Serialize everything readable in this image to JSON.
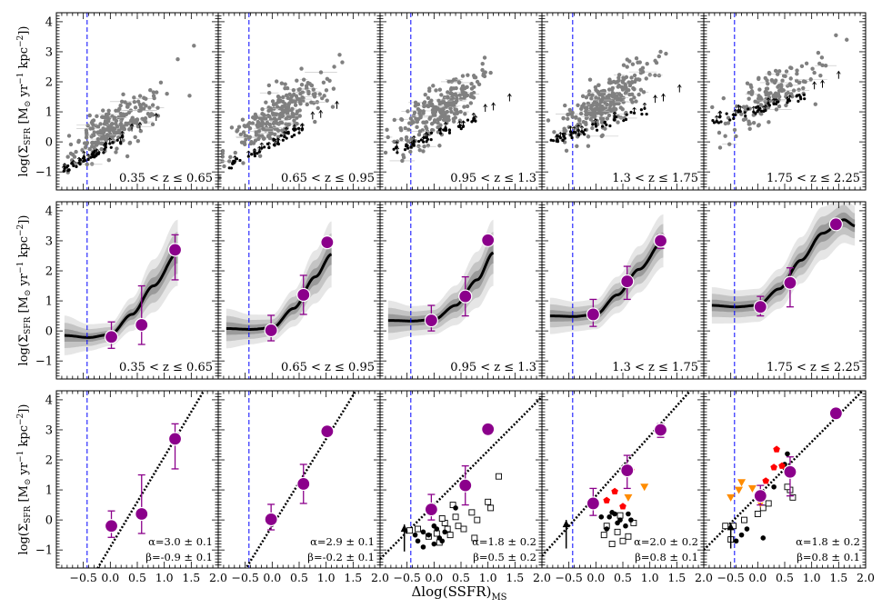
{
  "figure": {
    "x_label": "Δlog(SSFR)_MS",
    "x_label_main": "Δlog(SSFR)",
    "x_label_sub": "MS",
    "y_label": "log(Σ_SFR [M_⊙ yr^-1 kpc^-2])",
    "y_label_parts": {
      "pre": "log(Σ",
      "sub": "SFR",
      "mid": " [M",
      "sun": "⊙",
      "yr": " yr",
      "exp1": "−1",
      "kpc": " kpc",
      "exp2": "−2",
      "post": "])"
    },
    "colors": {
      "scatter": "#808080",
      "median": "#000000",
      "point": "#8b008b",
      "marker_edge": "#ffffff",
      "vline": "#0000ff",
      "band_outer": "#e6e6e6",
      "band_mid": "#c4c4c4",
      "band_inner": "#9a9a9a",
      "red_points": "#ff0000",
      "orange_points": "#ff8c00"
    }
  },
  "chart_data": {
    "type": "scatter",
    "layout": "3 rows x 5 columns, shared axes",
    "xlim": [
      -1.0,
      2.0
    ],
    "ylim": [
      -1.6,
      4.3
    ],
    "x_ticks": [
      -0.5,
      0.0,
      0.5,
      1.0,
      1.5,
      2.0
    ],
    "x_tick_labels": [
      "−0.5",
      "0.0",
      "0.5",
      "1.0",
      "1.5",
      "2.0"
    ],
    "y_ticks": [
      -1,
      0,
      1,
      2,
      3,
      4
    ],
    "y_tick_labels": [
      "−1",
      "0",
      "1",
      "2",
      "3",
      "4"
    ],
    "vline_x": -0.43,
    "bins": [
      {
        "label": "0.35 < z ≤ 0.65",
        "medians": [
          {
            "x": 0.02,
            "y": -0.2,
            "err_lo": 0.38,
            "err_hi": 0.5
          },
          {
            "x": 0.58,
            "y": 0.2,
            "err_lo": 0.65,
            "err_hi": 1.3
          },
          {
            "x": 1.2,
            "y": 2.7,
            "err_lo": 1.0,
            "err_hi": 0.5
          }
        ],
        "curve": {
          "x": [
            -0.85,
            -0.4,
            0.0,
            0.4,
            0.8,
            1.25
          ],
          "y": [
            -0.15,
            -0.22,
            -0.12,
            0.55,
            1.5,
            2.6
          ],
          "w": [
            0.6,
            0.4,
            0.35,
            0.5,
            0.8,
            1.0
          ]
        },
        "fit": {
          "alpha": "α=3.0 ± 0.1",
          "beta": "β=-0.9 ± 0.1",
          "slope": 3.0,
          "intercept": -0.9
        },
        "cloud": {
          "cx": 0.05,
          "cy": 0.5,
          "sx": 0.38,
          "sy": 0.55,
          "slope": 0.9,
          "n": 230,
          "seed": 11
        },
        "outliers": [
          [
            1.25,
            2.75
          ],
          [
            1.55,
            3.2
          ],
          [
            0.8,
            1.65
          ],
          [
            1.05,
            1.6
          ]
        ],
        "arrow_line": {
          "x0": -0.9,
          "x1": 0.25,
          "y0": -0.95,
          "y1": 0.1
        }
      },
      {
        "label": "0.65 < z ≤ 0.95",
        "medians": [
          {
            "x": -0.02,
            "y": 0.02,
            "err_lo": 0.35,
            "err_hi": 0.5
          },
          {
            "x": 0.58,
            "y": 1.2,
            "err_lo": 0.65,
            "err_hi": 0.65
          },
          {
            "x": 1.02,
            "y": 2.95,
            "err_lo": 0.0,
            "err_hi": 0.0
          }
        ],
        "curve": {
          "x": [
            -0.85,
            -0.4,
            0.0,
            0.4,
            0.8,
            1.1
          ],
          "y": [
            0.08,
            0.05,
            0.1,
            0.75,
            1.8,
            2.55
          ],
          "w": [
            0.6,
            0.45,
            0.4,
            0.55,
            0.8,
            1.0
          ]
        },
        "fit": {
          "alpha": "α=2.9 ± 0.1",
          "beta": "β=-0.2 ± 0.1",
          "slope": 2.9,
          "intercept": -0.2
        },
        "cloud": {
          "cx": 0.1,
          "cy": 0.85,
          "sx": 0.4,
          "sy": 0.55,
          "slope": 1.1,
          "n": 260,
          "seed": 23
        },
        "outliers": [
          [
            1.15,
            2.5
          ],
          [
            1.25,
            2.9
          ],
          [
            1.3,
            2.65
          ]
        ],
        "arrow_line": {
          "x0": -0.85,
          "x1": 0.6,
          "y0": -0.85,
          "y1": 0.5
        }
      },
      {
        "label": "0.95 < z ≤ 1.3",
        "medians": [
          {
            "x": -0.05,
            "y": 0.35,
            "err_lo": 0.35,
            "err_hi": 0.5
          },
          {
            "x": 0.58,
            "y": 1.15,
            "err_lo": 0.65,
            "err_hi": 0.65
          },
          {
            "x": 1.0,
            "y": 3.02,
            "err_lo": 0.0,
            "err_hi": 0.0
          }
        ],
        "curve": {
          "x": [
            -0.85,
            -0.4,
            0.0,
            0.4,
            0.8,
            1.1
          ],
          "y": [
            0.35,
            0.33,
            0.38,
            0.85,
            1.7,
            2.6
          ],
          "w": [
            0.6,
            0.45,
            0.45,
            0.6,
            0.85,
            1.0
          ]
        },
        "fit": {
          "alpha": "α=1.8 ± 0.2",
          "beta": "β=0.5 ± 0.2",
          "slope": 1.8,
          "intercept": 0.5
        },
        "cloud": {
          "cx": 0.1,
          "cy": 1.05,
          "sx": 0.4,
          "sy": 0.6,
          "slope": 1.2,
          "n": 240,
          "seed": 37
        },
        "outliers": [
          [
            0.9,
            2.6
          ],
          [
            1.05,
            2.3
          ],
          [
            0.75,
            2.15
          ]
        ],
        "arrow_line": {
          "x0": -0.85,
          "x1": 0.8,
          "y0": -0.35,
          "y1": 0.75
        },
        "black_dots": [
          [
            -0.2,
            -0.4
          ],
          [
            -0.3,
            -0.7
          ],
          [
            -0.1,
            -0.5
          ],
          [
            0.0,
            -0.8
          ],
          [
            0.1,
            -0.6
          ],
          [
            -0.2,
            -0.9
          ],
          [
            0.2,
            -0.4
          ],
          [
            0.15,
            -0.7
          ],
          [
            0.05,
            -0.3
          ],
          [
            0.4,
            0.4
          ],
          [
            -0.35,
            -0.5
          ],
          [
            0.0,
            -0.2
          ]
        ],
        "open_squares": [
          [
            -0.45,
            -0.35
          ],
          [
            -0.3,
            -0.3
          ],
          [
            -0.1,
            -0.55
          ],
          [
            0.05,
            -0.45
          ],
          [
            0.1,
            -0.75
          ],
          [
            0.2,
            -0.1
          ],
          [
            0.25,
            -0.3
          ],
          [
            0.3,
            -0.5
          ],
          [
            0.4,
            0.1
          ],
          [
            0.45,
            -0.2
          ],
          [
            0.55,
            -0.3
          ],
          [
            0.7,
            0.25
          ],
          [
            0.75,
            -0.6
          ],
          [
            0.8,
            0.0
          ],
          [
            1.0,
            0.6
          ],
          [
            1.2,
            1.45
          ],
          [
            1.05,
            0.4
          ],
          [
            0.35,
            0.5
          ],
          [
            0.15,
            0.05
          ]
        ],
        "up_arrow": {
          "x": -0.55,
          "y0": -1.05,
          "y1": -0.15
        }
      },
      {
        "label": "1.3 < z ≤ 1.75",
        "medians": [
          {
            "x": -0.05,
            "y": 0.55,
            "err_lo": 0.4,
            "err_hi": 0.5
          },
          {
            "x": 0.58,
            "y": 1.65,
            "err_lo": 0.6,
            "err_hi": 0.5
          },
          {
            "x": 1.2,
            "y": 3.0,
            "err_lo": 0.25,
            "err_hi": 0.2
          }
        ],
        "curve": {
          "x": [
            -0.85,
            -0.4,
            0.0,
            0.4,
            0.8,
            1.25
          ],
          "y": [
            0.5,
            0.48,
            0.55,
            1.2,
            2.05,
            3.0
          ],
          "w": [
            0.55,
            0.45,
            0.45,
            0.55,
            0.7,
            0.8
          ]
        },
        "fit": {
          "alpha": "α=2.0 ± 0.2",
          "beta": "β=0.8 ± 0.1",
          "slope": 2.0,
          "intercept": 0.8
        },
        "cloud": {
          "cx": 0.15,
          "cy": 1.3,
          "sx": 0.42,
          "sy": 0.6,
          "slope": 1.1,
          "n": 280,
          "seed": 53
        },
        "outliers": [
          [
            1.2,
            3.0
          ],
          [
            1.1,
            2.7
          ],
          [
            0.95,
            2.6
          ]
        ],
        "arrow_line": {
          "x0": -0.85,
          "x1": 0.95,
          "y0": 0.0,
          "y1": 1.05
        },
        "black_dots": [
          [
            0.25,
            0.1
          ],
          [
            0.35,
            0.2
          ],
          [
            0.45,
            0.0
          ],
          [
            0.55,
            -0.2
          ],
          [
            0.2,
            -0.3
          ],
          [
            0.1,
            0.1
          ],
          [
            0.6,
            0.2
          ],
          [
            0.4,
            -0.1
          ],
          [
            0.3,
            0.25
          ],
          [
            0.65,
            0.0
          ]
        ],
        "open_squares": [
          [
            0.15,
            -0.5
          ],
          [
            0.3,
            -0.8
          ],
          [
            0.5,
            -0.7
          ],
          [
            0.4,
            -0.4
          ],
          [
            0.6,
            -0.55
          ],
          [
            0.2,
            -0.2
          ],
          [
            0.7,
            -0.1
          ],
          [
            0.45,
            0.15
          ]
        ],
        "red_points": [
          [
            0.2,
            0.65
          ],
          [
            0.65,
            1.65
          ],
          [
            0.35,
            0.95
          ],
          [
            0.5,
            0.45
          ]
        ],
        "orange_points": [
          [
            0.9,
            1.1
          ],
          [
            0.6,
            0.75
          ]
        ],
        "up_arrow": {
          "x": -0.55,
          "y0": -0.95,
          "y1": 0.0
        }
      },
      {
        "label": "1.75 < z ≤ 2.25",
        "medians": [
          {
            "x": 0.05,
            "y": 0.8,
            "err_lo": 0.3,
            "err_hi": 0.35
          },
          {
            "x": 0.6,
            "y": 1.6,
            "err_lo": 0.8,
            "err_hi": 0.5
          },
          {
            "x": 1.45,
            "y": 3.55,
            "err_lo": 0.0,
            "err_hi": 0.0
          }
        ],
        "curve": {
          "x": [
            -0.85,
            -0.4,
            0.0,
            0.4,
            0.8,
            1.2,
            1.6,
            1.8
          ],
          "y": [
            0.85,
            0.8,
            0.85,
            1.4,
            2.35,
            3.25,
            3.7,
            3.5
          ],
          "w": [
            0.55,
            0.5,
            0.5,
            0.6,
            0.7,
            0.8,
            0.7,
            0.6
          ]
        },
        "fit": {
          "alpha": "α=1.8 ± 0.2",
          "beta": "β=0.8 ± 0.1",
          "slope": 1.8,
          "intercept": 0.8
        },
        "cloud": {
          "cx": 0.2,
          "cy": 1.5,
          "sx": 0.42,
          "sy": 0.55,
          "slope": 1.0,
          "n": 150,
          "seed": 71
        },
        "outliers": [
          [
            1.45,
            3.55
          ],
          [
            1.65,
            3.4
          ],
          [
            1.2,
            2.55
          ],
          [
            1.05,
            2.3
          ]
        ],
        "arrow_line": {
          "x0": -0.85,
          "x1": 0.9,
          "y0": 0.7,
          "y1": 1.5
        },
        "black_dots": [
          [
            0.55,
            2.2
          ],
          [
            0.5,
            1.85
          ],
          [
            0.3,
            1.1
          ],
          [
            -0.3,
            -0.5
          ],
          [
            -0.4,
            -0.7
          ],
          [
            0.1,
            -0.6
          ],
          [
            -0.2,
            -0.3
          ]
        ],
        "open_squares": [
          [
            -0.6,
            -0.2
          ],
          [
            -0.45,
            -0.2
          ],
          [
            -0.25,
            0.0
          ],
          [
            0.0,
            0.2
          ],
          [
            0.1,
            0.4
          ],
          [
            0.2,
            0.55
          ],
          [
            0.6,
            1.0
          ],
          [
            0.65,
            0.75
          ],
          [
            0.55,
            1.1
          ],
          [
            -0.5,
            -0.65
          ]
        ],
        "red_points": [
          [
            0.3,
            1.75
          ],
          [
            0.45,
            1.8
          ],
          [
            0.35,
            2.35
          ],
          [
            0.15,
            1.3
          ]
        ],
        "orange_points": [
          [
            -0.3,
            1.25
          ],
          [
            -0.35,
            1.0
          ],
          [
            -0.1,
            1.05
          ],
          [
            -0.5,
            0.75
          ],
          [
            0.05,
            0.55
          ]
        ],
        "up_arrow": {
          "x": -0.5,
          "y0": -0.95,
          "y1": -0.1
        }
      }
    ]
  }
}
